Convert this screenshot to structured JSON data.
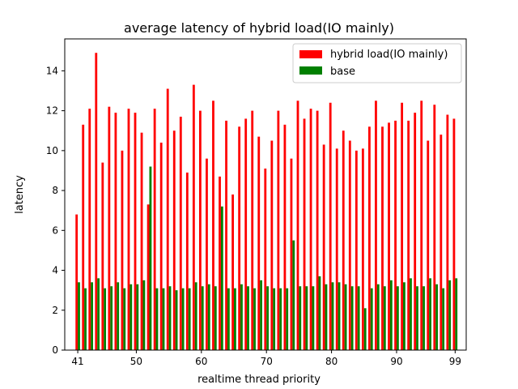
{
  "chart_data": {
    "type": "bar",
    "title": "average latency of hybrid load(IO mainly)",
    "xlabel": "realtime thread priority",
    "ylabel": "latency",
    "xlim": [
      39,
      100.7
    ],
    "ylim": [
      0,
      15.6
    ],
    "xticks": [
      41,
      50,
      60,
      70,
      80,
      90,
      99
    ],
    "yticks": [
      0,
      2,
      4,
      6,
      8,
      10,
      12,
      14
    ],
    "grid": false,
    "legend_position": "top-right",
    "x": [
      41,
      42,
      43,
      44,
      45,
      46,
      47,
      48,
      49,
      50,
      51,
      52,
      53,
      54,
      55,
      56,
      57,
      58,
      59,
      60,
      61,
      62,
      63,
      64,
      65,
      66,
      67,
      68,
      69,
      70,
      71,
      72,
      73,
      74,
      75,
      76,
      77,
      78,
      79,
      80,
      81,
      82,
      83,
      84,
      85,
      86,
      87,
      88,
      89,
      90,
      91,
      92,
      93,
      94,
      95,
      96,
      97,
      98,
      99
    ],
    "series": [
      {
        "name": "hybrid load(IO mainly)",
        "color": "#ff0000",
        "values": [
          6.8,
          11.3,
          12.1,
          14.9,
          9.4,
          12.2,
          11.9,
          10.0,
          12.1,
          11.9,
          10.9,
          7.3,
          12.1,
          10.4,
          13.1,
          11.0,
          11.7,
          8.9,
          13.3,
          12.0,
          9.6,
          12.5,
          8.7,
          11.5,
          7.8,
          11.2,
          11.6,
          12.0,
          10.7,
          9.1,
          10.5,
          12.0,
          11.3,
          9.6,
          12.5,
          11.6,
          12.1,
          12.0,
          10.3,
          12.4,
          10.1,
          11.0,
          10.5,
          10.0,
          10.1,
          11.2,
          12.5,
          11.2,
          11.4,
          11.5,
          12.4,
          11.5,
          11.9,
          12.5,
          10.5,
          12.3,
          10.8,
          11.8,
          11.6
        ]
      },
      {
        "name": "base",
        "color": "#008000",
        "values": [
          3.4,
          3.1,
          3.4,
          3.6,
          3.1,
          3.2,
          3.4,
          3.1,
          3.3,
          3.3,
          3.5,
          9.2,
          3.1,
          3.1,
          3.2,
          3.0,
          3.1,
          3.1,
          3.4,
          3.2,
          3.3,
          3.2,
          7.2,
          3.1,
          3.1,
          3.3,
          3.2,
          3.1,
          3.5,
          3.2,
          3.1,
          3.1,
          3.1,
          5.5,
          3.2,
          3.2,
          3.2,
          3.7,
          3.3,
          3.4,
          3.4,
          3.3,
          3.2,
          3.2,
          2.1,
          3.1,
          3.3,
          3.2,
          3.5,
          3.2,
          3.4,
          3.6,
          3.2,
          3.2,
          3.6,
          3.3,
          3.1,
          3.5,
          3.6
        ]
      }
    ]
  }
}
